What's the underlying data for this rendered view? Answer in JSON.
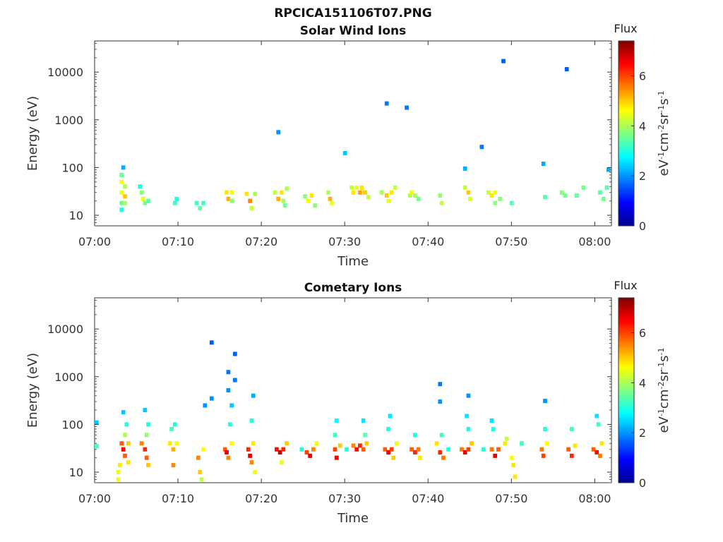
{
  "figure_title": "RPCICA151106T07.PNG",
  "chart_data": [
    {
      "type": "heatmap",
      "title": "Solar Wind Ions",
      "xlabel": "Time",
      "ylabel": "Energy (eV)",
      "x_ticks": [
        "07:00",
        "07:10",
        "07:20",
        "07:30",
        "07:40",
        "07:50",
        "08:00"
      ],
      "x_range_min": [
        0,
        62
      ],
      "y_scale": "log",
      "y_ticks": [
        10,
        100,
        1000,
        10000
      ],
      "y_tick_labels": [
        "10",
        "100",
        "1000",
        "10000"
      ],
      "ylim": [
        6,
        45000
      ],
      "colorbar": {
        "title": "Flux",
        "label": "eV-1cm-2sr-1s-1",
        "range": [
          0,
          7.4
        ],
        "ticks": [
          0,
          2,
          4,
          6
        ],
        "colormap": "jet"
      },
      "cells": [
        [
          3.0,
          70,
          3.5
        ],
        [
          3.0,
          50,
          4.5
        ],
        [
          3.0,
          30,
          4.5
        ],
        [
          3.0,
          18,
          3.5
        ],
        [
          3.0,
          13,
          3.0
        ],
        [
          3.2,
          100,
          2.2
        ],
        [
          3.4,
          40,
          4.0
        ],
        [
          3.4,
          25,
          5.0
        ],
        [
          3.4,
          18,
          4.0
        ],
        [
          5.2,
          40,
          3.0
        ],
        [
          5.4,
          30,
          3.8
        ],
        [
          5.6,
          22,
          4.5
        ],
        [
          5.8,
          18,
          3.6
        ],
        [
          6.2,
          20,
          3.4
        ],
        [
          9.4,
          18,
          3.2
        ],
        [
          9.6,
          22,
          3.0
        ],
        [
          12.0,
          18,
          3.2
        ],
        [
          12.4,
          14,
          3.5
        ],
        [
          12.8,
          18,
          3.2
        ],
        [
          15.6,
          30,
          4.8
        ],
        [
          15.8,
          22,
          5.2
        ],
        [
          16.2,
          30,
          4.5
        ],
        [
          16.2,
          20,
          3.8
        ],
        [
          18.0,
          28,
          4.8
        ],
        [
          18.4,
          20,
          5.5
        ],
        [
          18.6,
          14,
          4.2
        ],
        [
          19.0,
          28,
          4.0
        ],
        [
          21.4,
          30,
          4.2
        ],
        [
          21.8,
          22,
          5.2
        ],
        [
          22.2,
          30,
          4.8
        ],
        [
          22.4,
          20,
          4.0
        ],
        [
          22.6,
          16,
          3.6
        ],
        [
          22.8,
          36,
          4.0
        ],
        [
          25.0,
          25,
          3.8
        ],
        [
          25.4,
          20,
          4.6
        ],
        [
          25.8,
          26,
          4.8
        ],
        [
          26.2,
          16,
          3.8
        ],
        [
          27.8,
          30,
          4.0
        ],
        [
          28.0,
          22,
          5.2
        ],
        [
          28.2,
          18,
          4.5
        ],
        [
          30.6,
          38,
          4.2
        ],
        [
          30.8,
          30,
          4.8
        ],
        [
          31.2,
          38,
          4.5
        ],
        [
          31.6,
          30,
          5.3
        ],
        [
          31.8,
          38,
          4.8
        ],
        [
          32.2,
          30,
          5.0
        ],
        [
          32.6,
          24,
          4.2
        ],
        [
          34.2,
          30,
          4.0
        ],
        [
          34.8,
          26,
          5.0
        ],
        [
          35.0,
          20,
          4.5
        ],
        [
          35.4,
          30,
          4.8
        ],
        [
          35.8,
          38,
          4.2
        ],
        [
          37.6,
          26,
          4.0
        ],
        [
          37.8,
          30,
          4.6
        ],
        [
          38.2,
          26,
          4.0
        ],
        [
          38.6,
          22,
          3.6
        ],
        [
          41.2,
          26,
          3.8
        ],
        [
          41.4,
          18,
          4.2
        ],
        [
          44.2,
          38,
          4.2
        ],
        [
          44.6,
          30,
          5.0
        ],
        [
          44.8,
          22,
          4.4
        ],
        [
          47.0,
          30,
          4.2
        ],
        [
          47.4,
          26,
          4.8
        ],
        [
          47.8,
          30,
          4.5
        ],
        [
          47.8,
          18,
          3.8
        ],
        [
          48.4,
          22,
          3.8
        ],
        [
          49.8,
          18,
          3.4
        ],
        [
          53.8,
          24,
          3.4
        ],
        [
          55.8,
          30,
          3.8
        ],
        [
          56.2,
          26,
          3.6
        ],
        [
          57.6,
          26,
          3.5
        ],
        [
          58.4,
          38,
          3.6
        ],
        [
          60.4,
          30,
          3.4
        ],
        [
          60.8,
          22,
          3.6
        ],
        [
          61.2,
          38,
          3.4
        ],
        [
          21.8,
          550,
          2.0
        ],
        [
          29.8,
          200,
          2.4
        ],
        [
          34.8,
          2200,
          1.8
        ],
        [
          37.2,
          1800,
          1.8
        ],
        [
          44.2,
          95,
          2.2
        ],
        [
          46.2,
          270,
          1.8
        ],
        [
          48.8,
          17000,
          1.6
        ],
        [
          53.6,
          120,
          2.2
        ],
        [
          56.4,
          11500,
          1.6
        ],
        [
          61.4,
          90,
          2.2
        ]
      ]
    },
    {
      "type": "heatmap",
      "title": "Cometary Ions",
      "xlabel": "Time",
      "ylabel": "Energy (eV)",
      "x_ticks": [
        "07:00",
        "07:10",
        "07:20",
        "07:30",
        "07:40",
        "07:50",
        "08:00"
      ],
      "x_range_min": [
        0,
        62
      ],
      "y_scale": "log",
      "y_ticks": [
        10,
        100,
        1000,
        10000
      ],
      "y_tick_labels": [
        "10",
        "100",
        "1000",
        "10000"
      ],
      "ylim": [
        6,
        45000
      ],
      "colorbar": {
        "title": "Flux",
        "label": "eV-1cm-2sr-1s-1",
        "range": [
          0,
          7.4
        ],
        "ticks": [
          0,
          2,
          4,
          6
        ],
        "colormap": "jet"
      },
      "cells": [
        [
          2.6,
          10,
          4.5
        ],
        [
          2.6,
          7,
          4.5
        ],
        [
          2.8,
          14,
          4.8
        ],
        [
          3.0,
          40,
          5.8
        ],
        [
          3.2,
          30,
          6.5
        ],
        [
          3.4,
          22,
          5.8
        ],
        [
          3.4,
          60,
          4.0
        ],
        [
          3.6,
          100,
          3.0
        ],
        [
          3.2,
          180,
          2.4
        ],
        [
          3.8,
          16,
          4.8
        ],
        [
          3.8,
          40,
          5.0
        ],
        [
          5.4,
          40,
          5.5
        ],
        [
          5.8,
          30,
          6.2
        ],
        [
          6.0,
          20,
          5.8
        ],
        [
          6.2,
          14,
          5.0
        ],
        [
          6.0,
          60,
          3.8
        ],
        [
          6.2,
          100,
          3.0
        ],
        [
          5.8,
          200,
          2.4
        ],
        [
          8.8,
          40,
          4.8
        ],
        [
          9.2,
          30,
          5.2
        ],
        [
          9.2,
          14,
          5.5
        ],
        [
          9.6,
          40,
          4.5
        ],
        [
          9.0,
          80,
          3.2
        ],
        [
          9.4,
          100,
          3.0
        ],
        [
          12.2,
          20,
          5.5
        ],
        [
          12.4,
          10,
          5.0
        ],
        [
          12.6,
          7,
          4.2
        ],
        [
          12.8,
          30,
          4.6
        ],
        [
          15.4,
          30,
          5.8
        ],
        [
          15.6,
          26,
          6.6
        ],
        [
          15.8,
          20,
          5.5
        ],
        [
          16.2,
          40,
          4.6
        ],
        [
          16.0,
          100,
          3.0
        ],
        [
          16.2,
          250,
          2.4
        ],
        [
          15.8,
          520,
          2.0
        ],
        [
          18.2,
          30,
          6.2
        ],
        [
          18.4,
          22,
          6.6
        ],
        [
          18.6,
          16,
          5.5
        ],
        [
          18.8,
          40,
          4.8
        ],
        [
          18.6,
          120,
          3.0
        ],
        [
          18.8,
          400,
          2.2
        ],
        [
          19.0,
          10,
          4.5
        ],
        [
          21.6,
          30,
          6.4
        ],
        [
          22.0,
          26,
          6.8
        ],
        [
          22.4,
          30,
          6.2
        ],
        [
          22.8,
          40,
          5.0
        ],
        [
          22.2,
          16,
          4.5
        ],
        [
          25.2,
          26,
          6.0
        ],
        [
          25.6,
          22,
          6.6
        ],
        [
          26.0,
          30,
          5.5
        ],
        [
          26.4,
          40,
          4.5
        ],
        [
          28.6,
          30,
          6.0
        ],
        [
          28.8,
          20,
          6.5
        ],
        [
          29.2,
          36,
          5.0
        ],
        [
          28.6,
          60,
          3.2
        ],
        [
          28.8,
          120,
          2.8
        ],
        [
          30.8,
          36,
          5.5
        ],
        [
          31.2,
          30,
          6.4
        ],
        [
          31.6,
          36,
          6.2
        ],
        [
          32.0,
          30,
          5.8
        ],
        [
          32.4,
          40,
          5.0
        ],
        [
          32.2,
          60,
          3.4
        ],
        [
          32.0,
          120,
          2.6
        ],
        [
          34.6,
          30,
          5.8
        ],
        [
          35.0,
          26,
          6.5
        ],
        [
          35.4,
          30,
          6.0
        ],
        [
          35.6,
          20,
          5.0
        ],
        [
          35.0,
          80,
          3.0
        ],
        [
          35.2,
          150,
          2.6
        ],
        [
          36.0,
          40,
          4.6
        ],
        [
          37.8,
          30,
          5.8
        ],
        [
          38.2,
          26,
          6.2
        ],
        [
          38.6,
          30,
          5.6
        ],
        [
          38.8,
          20,
          4.8
        ],
        [
          38.2,
          60,
          3.0
        ],
        [
          40.8,
          40,
          4.8
        ],
        [
          41.2,
          26,
          6.2
        ],
        [
          41.6,
          20,
          5.6
        ],
        [
          41.4,
          60,
          3.2
        ],
        [
          41.2,
          300,
          2.0
        ],
        [
          43.8,
          30,
          5.6
        ],
        [
          44.2,
          26,
          6.6
        ],
        [
          44.6,
          30,
          6.0
        ],
        [
          45.0,
          40,
          5.0
        ],
        [
          44.6,
          80,
          3.0
        ],
        [
          44.4,
          150,
          2.6
        ],
        [
          47.4,
          30,
          5.6
        ],
        [
          47.8,
          22,
          6.6
        ],
        [
          48.2,
          30,
          5.8
        ],
        [
          47.6,
          80,
          3.0
        ],
        [
          47.4,
          120,
          2.6
        ],
        [
          49.0,
          40,
          4.8
        ],
        [
          49.2,
          50,
          4.2
        ],
        [
          49.8,
          20,
          4.6
        ],
        [
          50.0,
          14,
          4.8
        ],
        [
          50.2,
          8,
          4.8
        ],
        [
          51.0,
          40,
          3.2
        ],
        [
          53.4,
          30,
          5.6
        ],
        [
          53.6,
          22,
          6.0
        ],
        [
          54.0,
          40,
          4.6
        ],
        [
          53.8,
          80,
          3.0
        ],
        [
          56.6,
          30,
          5.8
        ],
        [
          57.0,
          22,
          6.2
        ],
        [
          57.4,
          36,
          4.8
        ],
        [
          57.0,
          80,
          3.2
        ],
        [
          59.6,
          30,
          5.8
        ],
        [
          60.0,
          26,
          6.4
        ],
        [
          60.4,
          22,
          5.6
        ],
        [
          60.6,
          40,
          4.8
        ],
        [
          60.2,
          100,
          3.2
        ],
        [
          60.0,
          150,
          2.6
        ],
        [
          0.0,
          110,
          2.4
        ],
        [
          0.0,
          35,
          3.2
        ],
        [
          24.6,
          30,
          3.0
        ],
        [
          30.0,
          30,
          3.0
        ],
        [
          42.2,
          30,
          3.0
        ],
        [
          46.4,
          30,
          3.0
        ],
        [
          13.8,
          5200,
          1.6
        ],
        [
          16.6,
          3000,
          1.6
        ],
        [
          15.8,
          1250,
          1.8
        ],
        [
          16.6,
          850,
          1.8
        ],
        [
          41.2,
          700,
          1.8
        ],
        [
          13.0,
          250,
          2.0
        ],
        [
          13.8,
          350,
          2.0
        ],
        [
          44.6,
          400,
          2.0
        ],
        [
          53.8,
          310,
          2.0
        ]
      ]
    }
  ]
}
